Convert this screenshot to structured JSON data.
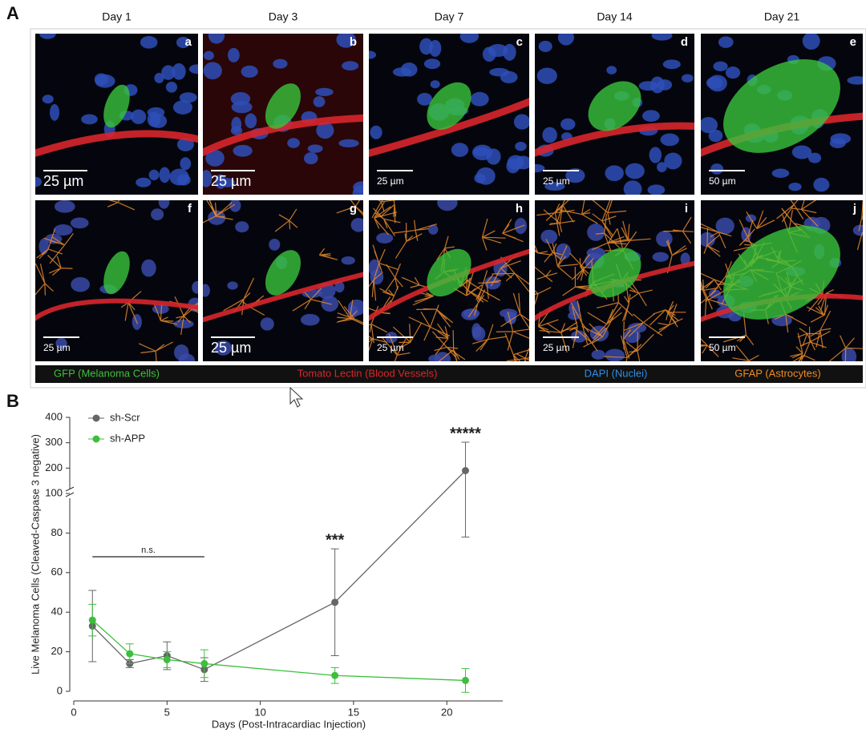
{
  "panel_a": {
    "label": "A",
    "columns": [
      "Day 1",
      "Day 3",
      "Day 7",
      "Day 14",
      "Day 21"
    ],
    "images": [
      {
        "letter": "a",
        "scale_bar": "25 µm"
      },
      {
        "letter": "b",
        "scale_bar": "25 µm"
      },
      {
        "letter": "c",
        "scale_bar": "25 µm"
      },
      {
        "letter": "d",
        "scale_bar": "25 µm"
      },
      {
        "letter": "e",
        "scale_bar": "50 µm"
      },
      {
        "letter": "f",
        "scale_bar": "25 µm"
      },
      {
        "letter": "g",
        "scale_bar": "25 µm"
      },
      {
        "letter": "h",
        "scale_bar": "25 µm"
      },
      {
        "letter": "i",
        "scale_bar": "25 µm"
      },
      {
        "letter": "j",
        "scale_bar": "50 µm"
      }
    ],
    "legend": [
      {
        "text": "GFP (Melanoma Cells)",
        "color": "#3cc23c"
      },
      {
        "text": "Tomato Lectin (Blood Vessels)",
        "color": "#d8262c"
      },
      {
        "text": "DAPI (Nuclei)",
        "color": "#2f8ee8"
      },
      {
        "text": "GFAP (Astrocytes)",
        "color": "#f08a24"
      }
    ]
  },
  "chart_data": {
    "type": "line",
    "panel_label": "B",
    "xlabel": "Days (Post-Intracardiac Injection)",
    "ylabel": "Live Melanoma Cells  (Cleaved-Caspase 3 negative)",
    "x": [
      1,
      3,
      5,
      7,
      14,
      21
    ],
    "series": [
      {
        "name": "sh-Scr",
        "color": "#666666",
        "values": [
          33,
          14,
          18,
          11,
          45,
          190
        ],
        "errors": [
          18,
          2,
          7,
          6,
          27,
          112
        ]
      },
      {
        "name": "sh-APP",
        "color": "#3cbf3c",
        "values": [
          36,
          19,
          16,
          14,
          8,
          5.5
        ],
        "errors": [
          8,
          5,
          4,
          7,
          4,
          6
        ]
      }
    ],
    "xlim": [
      0,
      23
    ],
    "xticks": [
      0,
      5,
      10,
      15,
      20
    ],
    "ylim": [
      0,
      400
    ],
    "ybreak": 100,
    "yticks": [
      0,
      20,
      40,
      60,
      80,
      100,
      200,
      300,
      400
    ],
    "annotations": [
      "n.s.",
      "***",
      "*****"
    ]
  }
}
